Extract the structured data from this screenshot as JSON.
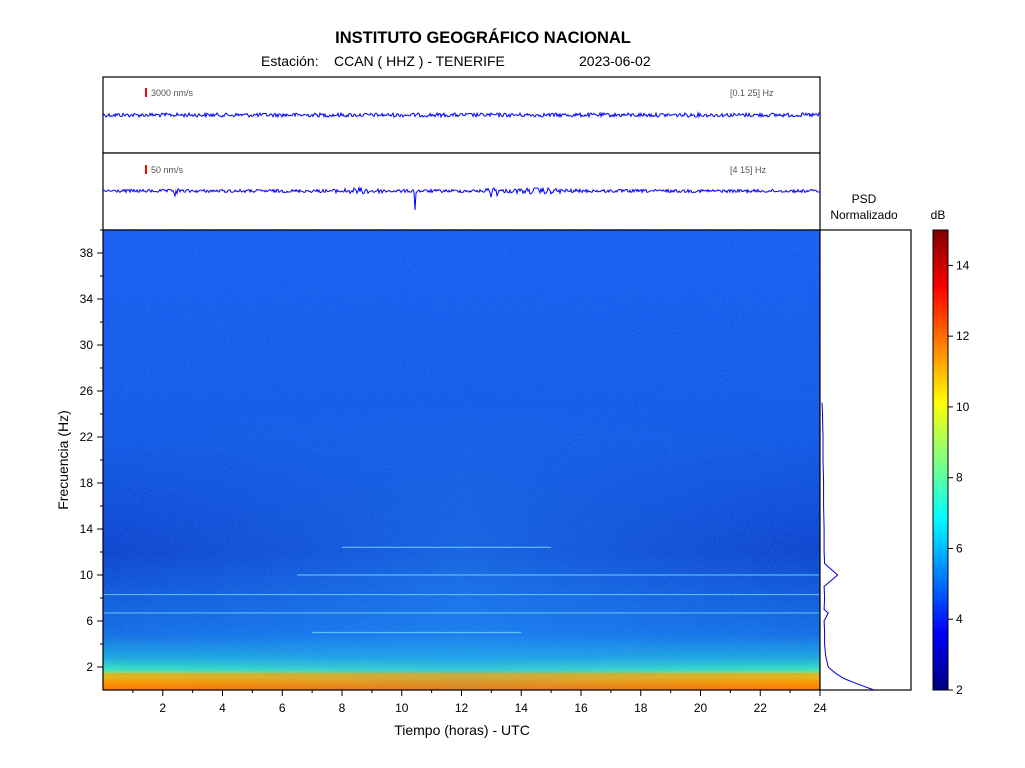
{
  "header": {
    "title": "INSTITUTO GEOGRÁFICO NACIONAL",
    "station_prefix": "Estación:",
    "station_name": "CCAN ( HHZ ) - TENERIFE",
    "date": "2023-06-02"
  },
  "traces": [
    {
      "scale_label": "3000 nm/s",
      "band_label": "[0.1 25] Hz"
    },
    {
      "scale_label": "50 nm/s",
      "band_label": "[4 15] Hz"
    }
  ],
  "psd": {
    "label_line1": "PSD",
    "label_line2": "Normalizado"
  },
  "colorbar": {
    "unit": "dB",
    "min": 2,
    "max": 15,
    "ticks": [
      2,
      4,
      6,
      8,
      10,
      12,
      14
    ]
  },
  "colors": {
    "trace": "#0000ff",
    "scale_marker": "#ff0000",
    "psd_line": "#0000cc",
    "colormap": [
      "#00007f",
      "#0000ff",
      "#0080ff",
      "#00ffff",
      "#80ff80",
      "#ffff00",
      "#ff8000",
      "#ff0000",
      "#7f0000"
    ]
  },
  "chart_data": {
    "type": "heatmap",
    "xlabel": "Tiempo (horas) - UTC",
    "ylabel": "Frecuencia  (Hz)",
    "xlim": [
      0,
      24
    ],
    "ylim": [
      0,
      40
    ],
    "xticks": [
      2,
      4,
      6,
      8,
      10,
      12,
      14,
      16,
      18,
      20,
      22,
      24
    ],
    "yticks": [
      2,
      6,
      10,
      14,
      18,
      22,
      26,
      30,
      34,
      38
    ],
    "background_level_db": 4.3,
    "low_frequency_band": {
      "freq_max_hz": 1.5,
      "level_db": 12
    },
    "spectral_lines": [
      {
        "freq_hz": 6.7,
        "time_start_h": 0,
        "time_end_h": 24,
        "level_db": 6.0
      },
      {
        "freq_hz": 10.0,
        "time_start_h": 6.5,
        "time_end_h": 24,
        "level_db": 5.8
      },
      {
        "freq_hz": 12.4,
        "time_start_h": 8,
        "time_end_h": 15,
        "level_db": 5.6
      },
      {
        "freq_hz": 5.0,
        "time_start_h": 7,
        "time_end_h": 14,
        "level_db": 5.3
      },
      {
        "freq_hz": 8.3,
        "time_start_h": 0,
        "time_end_h": 24,
        "level_db": 5.1
      }
    ],
    "psd_normalized": {
      "freq_hz": [
        0,
        0.5,
        1,
        1.5,
        2,
        3,
        4,
        5,
        6,
        6.7,
        7,
        8,
        9,
        10,
        11,
        12,
        13,
        14,
        16,
        18,
        20,
        22,
        24,
        25
      ],
      "values": [
        1.0,
        0.7,
        0.42,
        0.25,
        0.12,
        0.07,
        0.05,
        0.05,
        0.04,
        0.12,
        0.04,
        0.05,
        0.04,
        0.3,
        0.05,
        0.04,
        0.04,
        0.04,
        0.03,
        0.03,
        0.02,
        0.02,
        0.01,
        0.0
      ]
    }
  }
}
